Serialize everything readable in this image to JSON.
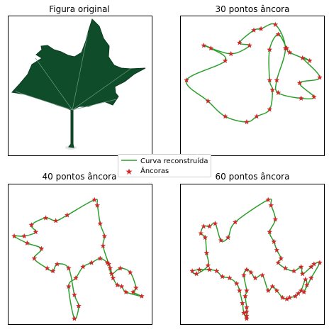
{
  "colors": {
    "curve": "#2ca02c",
    "anchor": "#d62728",
    "leaf": "#0f4d2a",
    "leaf_vein": "#6a9a80"
  },
  "legend": {
    "curve_label": "Curva reconstruída",
    "anchor_label": "Âncoras"
  },
  "chart_data": [
    {
      "type": "image",
      "title": "Figura original",
      "content": "leaf photograph"
    },
    {
      "type": "scatter",
      "title": "30 pontos âncora",
      "series": [
        {
          "name": "Curva reconstruída",
          "kind": "line"
        },
        {
          "name": "Âncoras",
          "kind": "marker"
        }
      ],
      "x": [
        0.66,
        0.73,
        0.67,
        0.68,
        0.84,
        0.93,
        0.83,
        0.97,
        0.85,
        0.9,
        0.76,
        0.74,
        0.68,
        0.62,
        0.62,
        0.64,
        0.62,
        0.53,
        0.46,
        0.31,
        0.19,
        0.04,
        0.31,
        0.21,
        0.16,
        0.35,
        0.48,
        0.41,
        0.51,
        0.56
      ],
      "y": [
        0.94,
        0.77,
        0.54,
        0.45,
        0.41,
        0.42,
        0.52,
        0.56,
        0.7,
        0.68,
        0.74,
        0.77,
        0.87,
        0.76,
        0.54,
        0.47,
        0.33,
        0.28,
        0.24,
        0.28,
        0.39,
        0.54,
        0.68,
        0.77,
        0.79,
        0.73,
        0.79,
        0.81,
        0.9,
        0.91
      ]
    },
    {
      "type": "scatter",
      "title": "40 pontos âncora",
      "series": [
        {
          "name": "Curva reconstruída",
          "kind": "line"
        },
        {
          "name": "Âncoras",
          "kind": "marker"
        }
      ],
      "x": [
        0.6,
        0.62,
        0.64,
        0.67,
        0.66,
        0.7,
        0.72,
        0.78,
        0.85,
        0.89,
        0.87,
        0.93,
        0.82,
        0.79,
        0.76,
        0.73,
        0.71,
        0.69,
        0.64,
        0.58,
        0.52,
        0.47,
        0.42,
        0.46,
        0.49,
        0.46,
        0.42,
        0.34,
        0.31,
        0.27,
        0.18,
        0.23,
        0.13,
        0.04,
        0.11,
        0.19,
        0.16,
        0.26,
        0.33,
        0.41
      ],
      "y": [
        0.89,
        0.85,
        0.72,
        0.63,
        0.56,
        0.43,
        0.36,
        0.4,
        0.37,
        0.26,
        0.23,
        0.2,
        0.23,
        0.27,
        0.28,
        0.33,
        0.4,
        0.44,
        0.47,
        0.44,
        0.41,
        0.33,
        0.27,
        0.04,
        0.13,
        0.21,
        0.4,
        0.43,
        0.38,
        0.4,
        0.47,
        0.54,
        0.58,
        0.63,
        0.63,
        0.66,
        0.71,
        0.76,
        0.74,
        0.78
      ]
    },
    {
      "type": "scatter",
      "title": "60 pontos âncora",
      "series": [
        {
          "name": "Curva reconstruída",
          "kind": "line"
        },
        {
          "name": "Âncoras",
          "kind": "marker"
        }
      ],
      "x": [
        0.61,
        0.63,
        0.66,
        0.62,
        0.65,
        0.67,
        0.7,
        0.68,
        0.73,
        0.79,
        0.84,
        0.85,
        0.91,
        0.93,
        0.97,
        0.91,
        0.86,
        0.88,
        0.87,
        0.84,
        0.82,
        0.8,
        0.76,
        0.74,
        0.71,
        0.67,
        0.64,
        0.61,
        0.57,
        0.52,
        0.49,
        0.46,
        0.44,
        0.46,
        0.45,
        0.46,
        0.46,
        0.46,
        0.46,
        0.44,
        0.43,
        0.41,
        0.39,
        0.34,
        0.29,
        0.25,
        0.2,
        0.13,
        0.08,
        0.11,
        0.19,
        0.18,
        0.17,
        0.14,
        0.16,
        0.2,
        0.24,
        0.28,
        0.33,
        0.38
      ],
      "y": [
        0.89,
        0.85,
        0.75,
        0.66,
        0.59,
        0.53,
        0.47,
        0.44,
        0.4,
        0.38,
        0.41,
        0.36,
        0.41,
        0.43,
        0.44,
        0.33,
        0.23,
        0.28,
        0.32,
        0.24,
        0.22,
        0.2,
        0.19,
        0.18,
        0.19,
        0.24,
        0.27,
        0.24,
        0.35,
        0.33,
        0.37,
        0.39,
        0.35,
        0.24,
        0.2,
        0.12,
        0.09,
        0.06,
        0.04,
        0.08,
        0.15,
        0.24,
        0.29,
        0.33,
        0.34,
        0.38,
        0.39,
        0.39,
        0.38,
        0.36,
        0.42,
        0.51,
        0.62,
        0.65,
        0.7,
        0.7,
        0.72,
        0.6,
        0.62,
        0.73
      ]
    }
  ]
}
